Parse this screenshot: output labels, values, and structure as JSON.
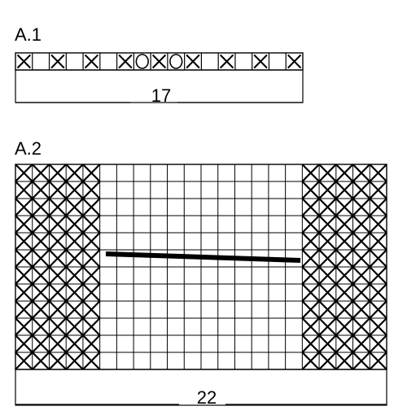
{
  "charts": [
    {
      "label": "A.1",
      "stitch_count": "17",
      "columns": 17,
      "rows": 1,
      "row_pattern": [
        "X",
        "",
        "X",
        "",
        "X",
        "",
        "X",
        "O",
        "X",
        "O",
        "X",
        "",
        "X",
        "",
        "X",
        "",
        "X"
      ]
    },
    {
      "label": "A.2",
      "stitch_count": "22",
      "columns": 22,
      "rows": 12,
      "left_cross_columns": 5,
      "right_cross_columns": 5,
      "has_marker_line": true
    }
  ]
}
